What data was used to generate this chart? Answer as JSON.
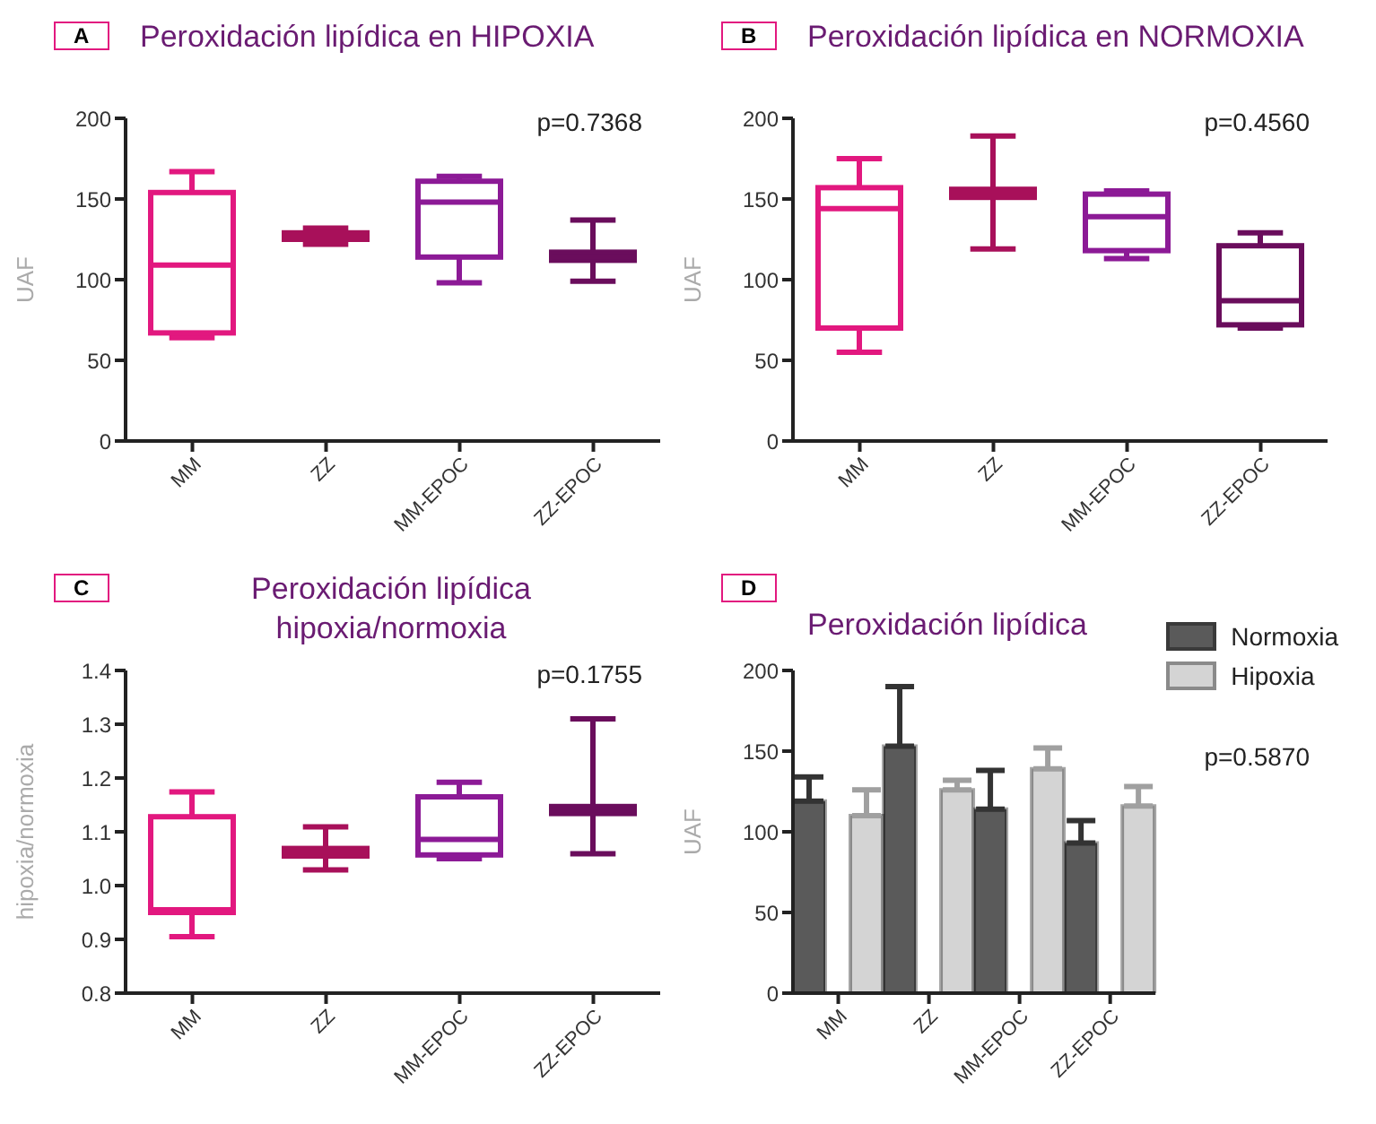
{
  "chart_data": [
    {
      "type": "box",
      "title": "Peroxidación lipídica en HIPOXIA",
      "ylabel": "UAF",
      "categories": [
        "MM",
        "ZZ",
        "MM-EPOC",
        "ZZ-EPOC"
      ],
      "colors": [
        "#e2187f",
        "#a8105a",
        "#8c1a96",
        "#6a0d5c"
      ],
      "boxes": [
        {
          "low": 64,
          "q1": 67,
          "median": 109,
          "q3": 154,
          "high": 167
        },
        {
          "low": 122,
          "q1": 125,
          "median": 127,
          "q3": 129,
          "high": 132
        },
        {
          "low": 98,
          "q1": 114,
          "median": 148,
          "q3": 161,
          "high": 164
        },
        {
          "low": 99,
          "q1": 112,
          "median": 114,
          "q3": 117,
          "high": 137
        }
      ],
      "ylim": [
        0,
        200
      ],
      "yticks": [
        0,
        50,
        100,
        150,
        200
      ],
      "annotations": [
        "A",
        "p=0.7368"
      ]
    },
    {
      "type": "box",
      "title": "Peroxidación lipídica en NORMOXIA",
      "ylabel": "UAF",
      "categories": [
        "MM",
        "ZZ",
        "MM-EPOC",
        "ZZ-EPOC"
      ],
      "colors": [
        "#e2187f",
        "#a8105a",
        "#8c1a96",
        "#6a0d5c"
      ],
      "boxes": [
        {
          "low": 55,
          "q1": 70,
          "median": 144,
          "q3": 157,
          "high": 175
        },
        {
          "low": 119,
          "q1": 151,
          "median": 153,
          "q3": 156,
          "high": 189
        },
        {
          "low": 113,
          "q1": 118,
          "median": 139,
          "q3": 153,
          "high": 155
        },
        {
          "low": 70,
          "q1": 72,
          "median": 87,
          "q3": 121,
          "high": 129
        }
      ],
      "ylim": [
        0,
        200
      ],
      "yticks": [
        0,
        50,
        100,
        150,
        200
      ],
      "annotations": [
        "B",
        "p=0.4560"
      ]
    },
    {
      "type": "box",
      "title": "Peroxidación lipídica hipoxia/normoxia",
      "ylabel": "hipoxia/normoxia",
      "categories": [
        "MM",
        "ZZ",
        "MM-EPOC",
        "ZZ-EPOC"
      ],
      "colors": [
        "#e2187f",
        "#a8105a",
        "#8c1a96",
        "#6a0d5c"
      ],
      "boxes": [
        {
          "low": 0.905,
          "q1": 0.95,
          "median": 0.955,
          "q3": 1.128,
          "high": 1.174
        },
        {
          "low": 1.029,
          "q1": 1.055,
          "median": 1.062,
          "q3": 1.069,
          "high": 1.109
        },
        {
          "low": 1.05,
          "q1": 1.057,
          "median": 1.086,
          "q3": 1.165,
          "high": 1.192
        },
        {
          "low": 1.059,
          "q1": 1.134,
          "median": 1.141,
          "q3": 1.147,
          "high": 1.31
        }
      ],
      "ylim": [
        0.8,
        1.4
      ],
      "yticks": [
        0.8,
        0.9,
        {
          "value": 1,
          "label": "1.0"
        },
        1.1,
        1.2,
        1.3,
        1.4
      ],
      "annotations": [
        "C",
        "p=0.1755"
      ]
    },
    {
      "type": "bar",
      "title": "Peroxidación lipídica",
      "ylabel": "UAF",
      "categories": [
        "MM",
        "ZZ",
        "MM-EPOC",
        "ZZ-EPOC"
      ],
      "series": [
        {
          "name": "Normoxia",
          "color": "#5a5a5a",
          "values": [
            119,
            153,
            114,
            93
          ],
          "errors": [
            [
              119,
              134
            ],
            [
              153,
              190
            ],
            [
              114,
              138
            ],
            [
              93,
              107
            ]
          ]
        },
        {
          "name": "Hipoxia",
          "color": "#d4d4d4",
          "values": [
            110,
            126,
            139,
            116
          ],
          "errors": [
            [
              110,
              126
            ],
            [
              126,
              132
            ],
            [
              139,
              152
            ],
            [
              116,
              128
            ]
          ]
        }
      ],
      "ylim": [
        0,
        200
      ],
      "yticks": [
        0,
        50,
        100,
        150,
        200
      ],
      "legend": "top right",
      "annotations": [
        "D",
        "p=0.5870"
      ]
    }
  ]
}
